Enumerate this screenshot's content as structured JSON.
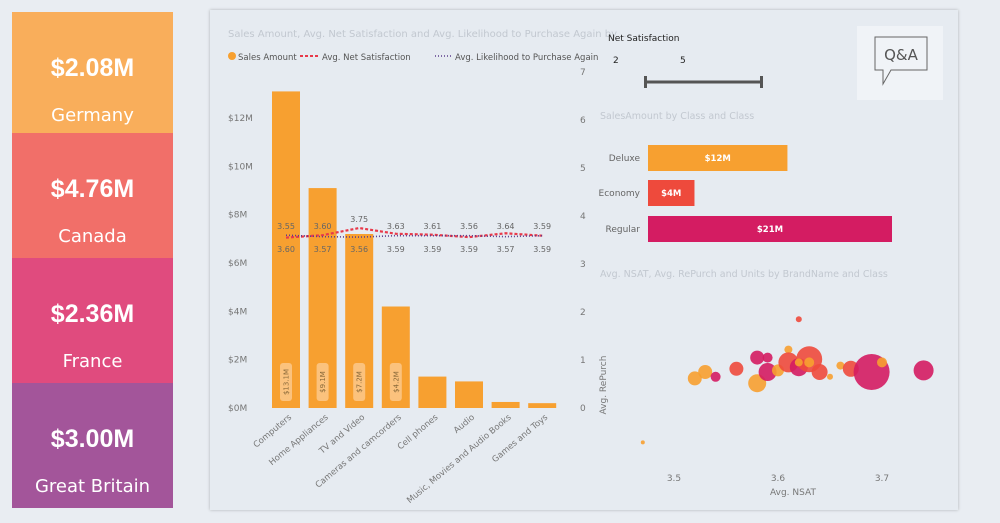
{
  "cards": [
    {
      "value": "$2.08M",
      "label": "Germany",
      "color": "#f9ae5b"
    },
    {
      "value": "$4.76M",
      "label": "Canada",
      "color": "#f16f69"
    },
    {
      "value": "$2.36M",
      "label": "France",
      "color": "#e04b7e"
    },
    {
      "value": "$3.00M",
      "label": "Great Britain",
      "color": "#a3559a"
    }
  ],
  "slicer": {
    "title": "Net Satisfaction",
    "min": "2",
    "max": "5"
  },
  "qa": {
    "label": "Q&A"
  },
  "combo": {
    "title": "Sales Amount, Avg. Net Satisfaction and Avg. Likelihood to Purchase Again by ...",
    "legend": [
      "Sales Amount",
      "Avg. Net Satisfaction",
      "Avg. Likelihood to Purchase Again"
    ],
    "y_ticks": [
      "$0M",
      "$2M",
      "$4M",
      "$6M",
      "$8M",
      "$10M",
      "$12M"
    ],
    "y2_ticks": [
      "0",
      "1",
      "2",
      "3",
      "4",
      "5",
      "6",
      "7"
    ]
  },
  "bar": {
    "title": "SalesAmount by Class and Class"
  },
  "scatter": {
    "title": "Avg. NSAT, Avg. RePurch and Units by BrandName and Class",
    "xlabel": "Avg. NSAT",
    "ylabel": "Avg. RePurch",
    "x_ticks": [
      "3.5",
      "3.6",
      "3.7"
    ]
  },
  "chart_data": [
    {
      "type": "bar+line",
      "categories": [
        "Computers",
        "Home Appliances",
        "TV and Video",
        "Cameras and camcorders",
        "Cell phones",
        "Audio",
        "Music, Movies and Audio Books",
        "Games and Toys"
      ],
      "ylim": [
        0,
        14
      ],
      "y2lim": [
        0,
        7
      ],
      "series": [
        {
          "name": "Sales Amount",
          "type": "bar",
          "axis": "left",
          "color": "#f7a030",
          "values": [
            13.1,
            9.1,
            7.2,
            4.2,
            1.3,
            1.1,
            0.25,
            0.2
          ],
          "data_labels": [
            "$13.1M",
            "$9.1M",
            "$7.2M",
            "$4.2M",
            "",
            "",
            "",
            ""
          ]
        },
        {
          "name": "Avg. Net Satisfaction",
          "type": "line",
          "axis": "right",
          "style": "dashed",
          "color": "#e8394a",
          "values": [
            3.55,
            3.6,
            3.75,
            3.63,
            3.61,
            3.56,
            3.64,
            3.59
          ]
        },
        {
          "name": "Avg. Likelihood to Purchase Again",
          "type": "line",
          "axis": "right",
          "style": "dotted",
          "color": "#5b3c8c",
          "values": [
            3.6,
            3.57,
            3.56,
            3.59,
            3.59,
            3.59,
            3.57,
            3.59
          ]
        }
      ]
    },
    {
      "type": "bar",
      "orientation": "horizontal",
      "categories": [
        "Deluxe",
        "Economy",
        "Regular"
      ],
      "values": [
        12,
        4,
        21
      ],
      "data_labels": [
        "$12M",
        "$4M",
        "$21M"
      ],
      "colors": [
        "#f7a030",
        "#ee4a3c",
        "#d41c62"
      ],
      "xlim": [
        0,
        25
      ]
    },
    {
      "type": "scatter",
      "xlim": [
        3.43,
        3.75
      ],
      "ylim": [
        3.0,
        4.0
      ],
      "classes": {
        "Deluxe": "#f7a030",
        "Economy": "#ee4a3c",
        "Regular": "#d41c62"
      },
      "points": [
        {
          "x": 3.62,
          "y": 3.88,
          "size": 3,
          "class": "Economy"
        },
        {
          "x": 3.52,
          "y": 3.51,
          "size": 7,
          "class": "Deluxe"
        },
        {
          "x": 3.53,
          "y": 3.55,
          "size": 7,
          "class": "Deluxe"
        },
        {
          "x": 3.54,
          "y": 3.52,
          "size": 5,
          "class": "Regular"
        },
        {
          "x": 3.56,
          "y": 3.57,
          "size": 7,
          "class": "Economy"
        },
        {
          "x": 3.58,
          "y": 3.48,
          "size": 9,
          "class": "Deluxe"
        },
        {
          "x": 3.58,
          "y": 3.64,
          "size": 7,
          "class": "Regular"
        },
        {
          "x": 3.59,
          "y": 3.64,
          "size": 5,
          "class": "Regular"
        },
        {
          "x": 3.59,
          "y": 3.55,
          "size": 9,
          "class": "Regular"
        },
        {
          "x": 3.61,
          "y": 3.69,
          "size": 4,
          "class": "Deluxe"
        },
        {
          "x": 3.6,
          "y": 3.56,
          "size": 6,
          "class": "Deluxe"
        },
        {
          "x": 3.61,
          "y": 3.61,
          "size": 10,
          "class": "Economy"
        },
        {
          "x": 3.62,
          "y": 3.58,
          "size": 9,
          "class": "Regular"
        },
        {
          "x": 3.63,
          "y": 3.63,
          "size": 13,
          "class": "Economy"
        },
        {
          "x": 3.62,
          "y": 3.61,
          "size": 4,
          "class": "Deluxe"
        },
        {
          "x": 3.63,
          "y": 3.61,
          "size": 5,
          "class": "Deluxe"
        },
        {
          "x": 3.64,
          "y": 3.55,
          "size": 8,
          "class": "Economy"
        },
        {
          "x": 3.65,
          "y": 3.52,
          "size": 3,
          "class": "Deluxe"
        },
        {
          "x": 3.66,
          "y": 3.59,
          "size": 4,
          "class": "Deluxe"
        },
        {
          "x": 3.67,
          "y": 3.57,
          "size": 8,
          "class": "Economy"
        },
        {
          "x": 3.69,
          "y": 3.55,
          "size": 18,
          "class": "Regular"
        },
        {
          "x": 3.7,
          "y": 3.61,
          "size": 5,
          "class": "Deluxe"
        },
        {
          "x": 3.74,
          "y": 3.56,
          "size": 10,
          "class": "Regular"
        },
        {
          "x": 3.47,
          "y": 3.11,
          "size": 2,
          "class": "Deluxe"
        }
      ]
    }
  ]
}
